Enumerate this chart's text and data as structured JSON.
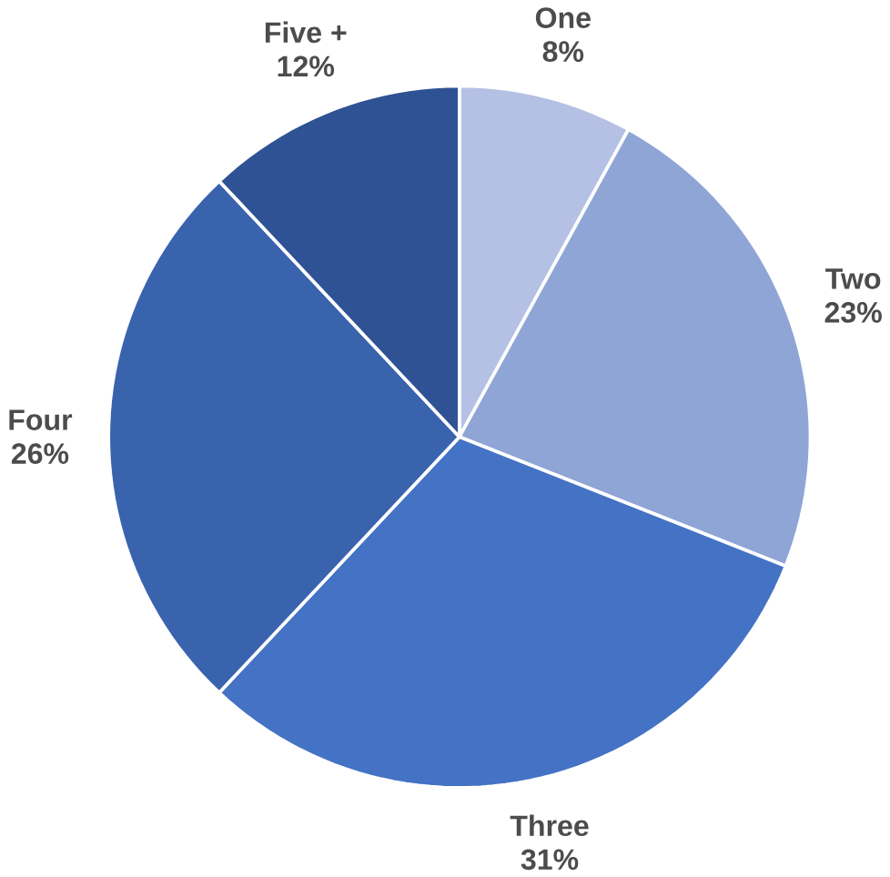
{
  "chart_data": {
    "type": "pie",
    "categories": [
      "One",
      "Two",
      "Three",
      "Four",
      "Five +"
    ],
    "values": [
      8,
      23,
      31,
      26,
      12
    ],
    "colors": [
      "#b4c0e4",
      "#8fa5d6",
      "#4472c4",
      "#3a63ae",
      "#2f5294"
    ],
    "value_labels": [
      "8%",
      "23%",
      "31%",
      "26%",
      "12%"
    ]
  }
}
